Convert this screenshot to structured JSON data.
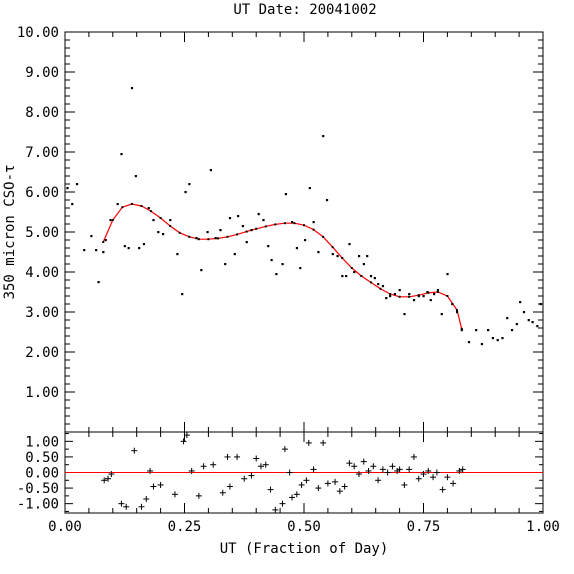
{
  "chart_data": [
    {
      "type": "scatter",
      "title": "UT Date: 20041002",
      "xlabel": "",
      "ylabel": "350 micron CSO-τ",
      "xlim": [
        0.0,
        1.0
      ],
      "ylim": [
        0.0,
        10.0
      ],
      "y_ticks": [
        "1.00",
        "2.00",
        "3.00",
        "4.00",
        "5.00",
        "6.00",
        "7.00",
        "8.00",
        "9.00",
        "10.00"
      ],
      "colors": {
        "fit": "#ff0000",
        "points": "#000000"
      },
      "series": [
        {
          "values": [
            [
              0.005,
              6.1
            ],
            [
              0.015,
              5.7
            ],
            [
              0.025,
              6.2
            ],
            [
              0.04,
              4.55
            ],
            [
              0.055,
              4.9
            ],
            [
              0.065,
              4.55
            ],
            [
              0.07,
              3.75
            ],
            [
              0.08,
              4.5
            ],
            [
              0.085,
              4.8
            ],
            [
              0.095,
              5.3
            ],
            [
              0.11,
              5.7
            ],
            [
              0.118,
              6.95
            ],
            [
              0.125,
              4.65
            ],
            [
              0.133,
              4.6
            ],
            [
              0.14,
              8.6
            ],
            [
              0.148,
              6.4
            ],
            [
              0.155,
              4.6
            ],
            [
              0.165,
              4.7
            ],
            [
              0.175,
              5.6
            ],
            [
              0.185,
              5.3
            ],
            [
              0.195,
              5.0
            ],
            [
              0.205,
              4.95
            ],
            [
              0.22,
              5.3
            ],
            [
              0.235,
              4.45
            ],
            [
              0.245,
              3.45
            ],
            [
              0.252,
              6.0
            ],
            [
              0.26,
              6.2
            ],
            [
              0.275,
              4.85
            ],
            [
              0.285,
              4.05
            ],
            [
              0.298,
              5.0
            ],
            [
              0.305,
              6.55
            ],
            [
              0.315,
              4.85
            ],
            [
              0.325,
              5.05
            ],
            [
              0.335,
              4.2
            ],
            [
              0.345,
              5.35
            ],
            [
              0.355,
              4.45
            ],
            [
              0.362,
              5.4
            ],
            [
              0.372,
              5.15
            ],
            [
              0.38,
              4.75
            ],
            [
              0.39,
              5.05
            ],
            [
              0.405,
              5.45
            ],
            [
              0.415,
              5.3
            ],
            [
              0.425,
              4.65
            ],
            [
              0.432,
              4.3
            ],
            [
              0.442,
              3.95
            ],
            [
              0.455,
              4.2
            ],
            [
              0.462,
              5.95
            ],
            [
              0.475,
              5.25
            ],
            [
              0.485,
              4.6
            ],
            [
              0.492,
              4.1
            ],
            [
              0.502,
              4.8
            ],
            [
              0.512,
              6.1
            ],
            [
              0.52,
              5.25
            ],
            [
              0.53,
              4.5
            ],
            [
              0.54,
              7.4
            ],
            [
              0.548,
              5.8
            ],
            [
              0.56,
              4.45
            ],
            [
              0.57,
              4.4
            ],
            [
              0.58,
              3.9
            ],
            [
              0.588,
              3.9
            ],
            [
              0.595,
              4.7
            ],
            [
              0.605,
              4.0
            ],
            [
              0.615,
              4.4
            ],
            [
              0.625,
              4.2
            ],
            [
              0.632,
              4.4
            ],
            [
              0.64,
              3.9
            ],
            [
              0.648,
              3.85
            ],
            [
              0.655,
              3.7
            ],
            [
              0.665,
              3.65
            ],
            [
              0.672,
              3.35
            ],
            [
              0.68,
              3.4
            ],
            [
              0.69,
              3.45
            ],
            [
              0.7,
              3.55
            ],
            [
              0.71,
              2.95
            ],
            [
              0.72,
              3.45
            ],
            [
              0.73,
              3.3
            ],
            [
              0.74,
              3.4
            ],
            [
              0.75,
              3.4
            ],
            [
              0.758,
              3.5
            ],
            [
              0.765,
              3.3
            ],
            [
              0.772,
              3.45
            ],
            [
              0.78,
              3.55
            ],
            [
              0.788,
              2.95
            ],
            [
              0.8,
              3.95
            ],
            [
              0.81,
              3.2
            ],
            [
              0.82,
              3.0
            ],
            [
              0.83,
              2.55
            ],
            [
              0.845,
              2.25
            ],
            [
              0.86,
              2.55
            ],
            [
              0.872,
              2.2
            ],
            [
              0.885,
              2.55
            ],
            [
              0.895,
              2.35
            ],
            [
              0.905,
              2.3
            ],
            [
              0.915,
              2.35
            ],
            [
              0.925,
              2.85
            ],
            [
              0.935,
              2.55
            ],
            [
              0.945,
              2.7
            ],
            [
              0.952,
              3.25
            ],
            [
              0.96,
              3.0
            ],
            [
              0.97,
              2.8
            ],
            [
              0.978,
              2.75
            ],
            [
              0.988,
              2.65
            ],
            [
              0.995,
              3.2
            ]
          ]
        },
        {
          "type": "line",
          "values": [
            [
              0.08,
              4.75
            ],
            [
              0.1,
              5.3
            ],
            [
              0.12,
              5.62
            ],
            [
              0.14,
              5.7
            ],
            [
              0.16,
              5.65
            ],
            [
              0.18,
              5.52
            ],
            [
              0.2,
              5.35
            ],
            [
              0.22,
              5.15
            ],
            [
              0.24,
              4.98
            ],
            [
              0.26,
              4.88
            ],
            [
              0.28,
              4.82
            ],
            [
              0.3,
              4.82
            ],
            [
              0.32,
              4.84
            ],
            [
              0.34,
              4.88
            ],
            [
              0.36,
              4.94
            ],
            [
              0.38,
              5.01
            ],
            [
              0.4,
              5.08
            ],
            [
              0.42,
              5.14
            ],
            [
              0.44,
              5.19
            ],
            [
              0.46,
              5.22
            ],
            [
              0.48,
              5.22
            ],
            [
              0.5,
              5.17
            ],
            [
              0.52,
              5.06
            ],
            [
              0.54,
              4.88
            ],
            [
              0.56,
              4.62
            ],
            [
              0.58,
              4.35
            ],
            [
              0.6,
              4.1
            ],
            [
              0.62,
              3.9
            ],
            [
              0.64,
              3.74
            ],
            [
              0.66,
              3.58
            ],
            [
              0.68,
              3.45
            ],
            [
              0.7,
              3.38
            ],
            [
              0.72,
              3.38
            ],
            [
              0.74,
              3.42
            ],
            [
              0.76,
              3.48
            ],
            [
              0.78,
              3.5
            ],
            [
              0.8,
              3.4
            ],
            [
              0.82,
              3.05
            ],
            [
              0.83,
              2.58
            ]
          ]
        }
      ]
    },
    {
      "type": "scatter",
      "xlabel": "UT (Fraction of Day)",
      "ylabel": "",
      "xlim": [
        0.0,
        1.0
      ],
      "ylim": [
        -1.3,
        1.3
      ],
      "x_ticks": [
        "0.00",
        "0.25",
        "0.50",
        "0.75",
        "1.00"
      ],
      "y_ticks": [
        "1.00",
        "0.50",
        "0.00",
        "-0.50",
        "-1.00"
      ],
      "series": [
        {
          "values": [
            [
              0.082,
              -0.25
            ],
            [
              0.09,
              -0.2
            ],
            [
              0.097,
              -0.05
            ],
            [
              0.118,
              -1.0
            ],
            [
              0.128,
              -1.1
            ],
            [
              0.145,
              0.7
            ],
            [
              0.16,
              -1.1
            ],
            [
              0.17,
              -0.85
            ],
            [
              0.178,
              0.05
            ],
            [
              0.185,
              -0.45
            ],
            [
              0.2,
              -0.4
            ],
            [
              0.23,
              -0.7
            ],
            [
              0.248,
              1.0
            ],
            [
              0.255,
              1.2
            ],
            [
              0.265,
              0.05
            ],
            [
              0.28,
              -0.75
            ],
            [
              0.29,
              0.2
            ],
            [
              0.31,
              0.25
            ],
            [
              0.33,
              -0.65
            ],
            [
              0.34,
              0.5
            ],
            [
              0.345,
              -0.45
            ],
            [
              0.36,
              0.5
            ],
            [
              0.375,
              -0.2
            ],
            [
              0.39,
              -0.1
            ],
            [
              0.4,
              0.45
            ],
            [
              0.41,
              0.2
            ],
            [
              0.42,
              0.25
            ],
            [
              0.43,
              -0.55
            ],
            [
              0.44,
              -1.2
            ],
            [
              0.455,
              -1.0
            ],
            [
              0.46,
              0.75
            ],
            [
              0.47,
              0.0
            ],
            [
              0.475,
              -0.8
            ],
            [
              0.485,
              -0.7
            ],
            [
              0.495,
              -0.4
            ],
            [
              0.505,
              -0.25
            ],
            [
              0.51,
              0.95
            ],
            [
              0.52,
              0.1
            ],
            [
              0.53,
              -0.5
            ],
            [
              0.54,
              0.95
            ],
            [
              0.55,
              -0.35
            ],
            [
              0.565,
              -0.3
            ],
            [
              0.575,
              -0.6
            ],
            [
              0.585,
              -0.45
            ],
            [
              0.595,
              0.3
            ],
            [
              0.605,
              0.2
            ],
            [
              0.615,
              -0.05
            ],
            [
              0.625,
              0.35
            ],
            [
              0.635,
              0.05
            ],
            [
              0.645,
              0.2
            ],
            [
              0.655,
              -0.25
            ],
            [
              0.665,
              0.1
            ],
            [
              0.675,
              0.0
            ],
            [
              0.685,
              0.2
            ],
            [
              0.695,
              0.05
            ],
            [
              0.7,
              0.1
            ],
            [
              0.71,
              -0.4
            ],
            [
              0.72,
              0.1
            ],
            [
              0.73,
              0.5
            ],
            [
              0.74,
              -0.2
            ],
            [
              0.75,
              -0.05
            ],
            [
              0.76,
              0.05
            ],
            [
              0.77,
              -0.15
            ],
            [
              0.778,
              0.0
            ],
            [
              0.79,
              -0.55
            ],
            [
              0.8,
              -0.15
            ],
            [
              0.812,
              -0.35
            ],
            [
              0.825,
              0.05
            ],
            [
              0.832,
              0.1
            ]
          ]
        },
        {
          "type": "line",
          "values": [
            [
              0.0,
              0.0
            ],
            [
              1.0,
              0.0
            ]
          ]
        }
      ]
    }
  ]
}
